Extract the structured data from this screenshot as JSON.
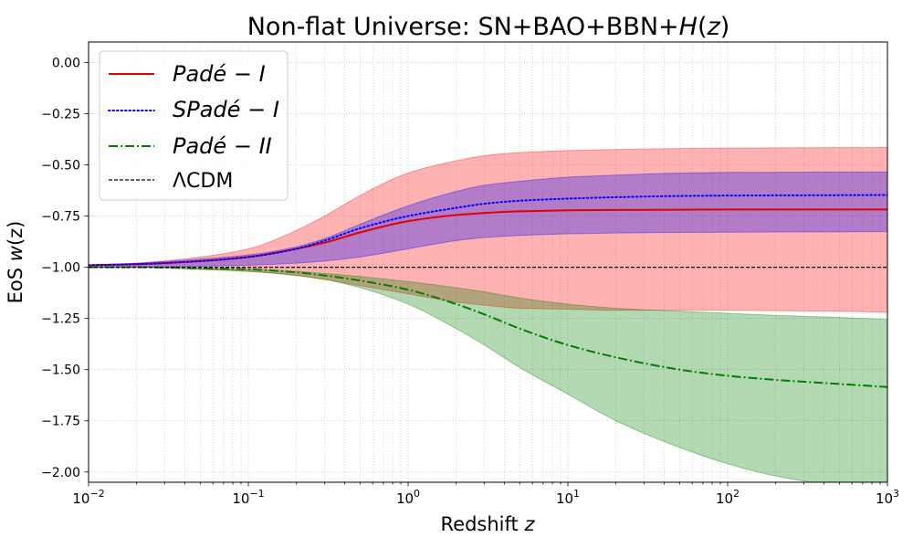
{
  "chart_data": {
    "type": "line",
    "title_prefix": "Non-flat Universe: SN+BAO+BBN+",
    "title_italic": "H",
    "title_suffix_open": "(",
    "title_suffix_var": "z",
    "title_suffix_close": ")",
    "xlabel": "Redshift",
    "xlabel_var": "z",
    "ylabel": "EoS",
    "ylabel_var": "w",
    "ylabel_suffix": "(z)",
    "xscale": "log",
    "xlim": [
      0.01,
      1000
    ],
    "ylim": [
      -2.05,
      0.1
    ],
    "grid": true,
    "legend_position": "upper-left",
    "x_ticks": [
      {
        "value": 0.01,
        "base": "10",
        "exp": "−2"
      },
      {
        "value": 0.1,
        "base": "10",
        "exp": "−1"
      },
      {
        "value": 1,
        "base": "10",
        "exp": "0"
      },
      {
        "value": 10,
        "base": "10",
        "exp": "1"
      },
      {
        "value": 100,
        "base": "10",
        "exp": "2"
      },
      {
        "value": 1000,
        "base": "10",
        "exp": "3"
      }
    ],
    "y_ticks": [
      {
        "value": 0.0,
        "label": "0.00"
      },
      {
        "value": -0.25,
        "label": "−0.25"
      },
      {
        "value": -0.5,
        "label": "−0.50"
      },
      {
        "value": -0.75,
        "label": "−0.75"
      },
      {
        "value": -1.0,
        "label": "−1.00"
      },
      {
        "value": -1.25,
        "label": "−1.25"
      },
      {
        "value": -1.5,
        "label": "−1.50"
      },
      {
        "value": -1.75,
        "label": "−1.75"
      },
      {
        "value": -2.0,
        "label": "−2.00"
      }
    ],
    "z": [
      0.01,
      0.02,
      0.05,
      0.1,
      0.2,
      0.3,
      0.5,
      1,
      2,
      3,
      5,
      10,
      20,
      50,
      100,
      200,
      500,
      1000
    ],
    "bands": [
      {
        "for": "Padé-I",
        "color": "#ff0000",
        "opacity": 0.3,
        "upper": [
          -0.99,
          -0.98,
          -0.95,
          -0.91,
          -0.82,
          -0.75,
          -0.65,
          -0.54,
          -0.48,
          -0.455,
          -0.44,
          -0.43,
          -0.425,
          -0.42,
          -0.418,
          -0.417,
          -0.416,
          -0.415
        ],
        "lower": [
          -1.0,
          -1.0,
          -1.01,
          -1.02,
          -1.04,
          -1.06,
          -1.09,
          -1.13,
          -1.17,
          -1.185,
          -1.2,
          -1.205,
          -1.21,
          -1.21,
          -1.21,
          -1.212,
          -1.215,
          -1.22
        ]
      },
      {
        "for": "Padé-II",
        "color": "#008000",
        "opacity": 0.3,
        "upper": [
          -1.0,
          -1.0,
          -1.005,
          -1.01,
          -1.02,
          -1.03,
          -1.045,
          -1.07,
          -1.1,
          -1.12,
          -1.15,
          -1.18,
          -1.2,
          -1.215,
          -1.225,
          -1.235,
          -1.245,
          -1.255
        ],
        "lower": [
          -1.0,
          -1.0,
          -1.01,
          -1.02,
          -1.04,
          -1.06,
          -1.1,
          -1.18,
          -1.3,
          -1.38,
          -1.49,
          -1.62,
          -1.75,
          -1.88,
          -1.96,
          -2.02,
          -2.07,
          -2.1
        ]
      },
      {
        "for": "SPadé-I",
        "color": "#0000ff",
        "opacity": 0.3,
        "upper": [
          -0.99,
          -0.98,
          -0.96,
          -0.94,
          -0.9,
          -0.86,
          -0.79,
          -0.7,
          -0.63,
          -0.6,
          -0.58,
          -0.56,
          -0.55,
          -0.54,
          -0.537,
          -0.536,
          -0.535,
          -0.535
        ],
        "lower": [
          -1.0,
          -1.0,
          -0.995,
          -0.99,
          -0.98,
          -0.97,
          -0.95,
          -0.91,
          -0.87,
          -0.855,
          -0.845,
          -0.837,
          -0.833,
          -0.83,
          -0.829,
          -0.828,
          -0.827,
          -0.826
        ]
      }
    ],
    "series": [
      {
        "name": "Padé−I",
        "legend_main": "Padé",
        "legend_sep": "−",
        "legend_tail": "I",
        "color": "#e00000",
        "style": "solid",
        "values": [
          -0.99,
          -0.985,
          -0.97,
          -0.95,
          -0.91,
          -0.88,
          -0.83,
          -0.775,
          -0.745,
          -0.735,
          -0.727,
          -0.722,
          -0.72,
          -0.719,
          -0.718,
          -0.718,
          -0.718,
          -0.718
        ]
      },
      {
        "name": "SPadé−I",
        "legend_main": "SPadé",
        "legend_sep": "−",
        "legend_tail": "I",
        "color": "#0000ff",
        "style": "dotted",
        "values": [
          -0.99,
          -0.985,
          -0.97,
          -0.95,
          -0.91,
          -0.87,
          -0.81,
          -0.75,
          -0.71,
          -0.69,
          -0.675,
          -0.665,
          -0.658,
          -0.652,
          -0.65,
          -0.649,
          -0.648,
          -0.647
        ]
      },
      {
        "name": "Padé−II",
        "legend_main": "Padé",
        "legend_sep": "−",
        "legend_tail": "II",
        "color": "#007f00",
        "style": "dashdot",
        "values": [
          -1.0,
          -1.0,
          -1.005,
          -1.01,
          -1.025,
          -1.04,
          -1.065,
          -1.11,
          -1.18,
          -1.23,
          -1.3,
          -1.38,
          -1.44,
          -1.5,
          -1.53,
          -1.55,
          -1.57,
          -1.585
        ]
      },
      {
        "name": "ΛCDM",
        "legend_main": "ΛCDM",
        "legend_sep": "",
        "legend_tail": "",
        "color": "#000000",
        "style": "dashed",
        "values": [
          -1,
          -1,
          -1,
          -1,
          -1,
          -1,
          -1,
          -1,
          -1,
          -1,
          -1,
          -1,
          -1,
          -1,
          -1,
          -1,
          -1,
          -1
        ]
      }
    ]
  }
}
